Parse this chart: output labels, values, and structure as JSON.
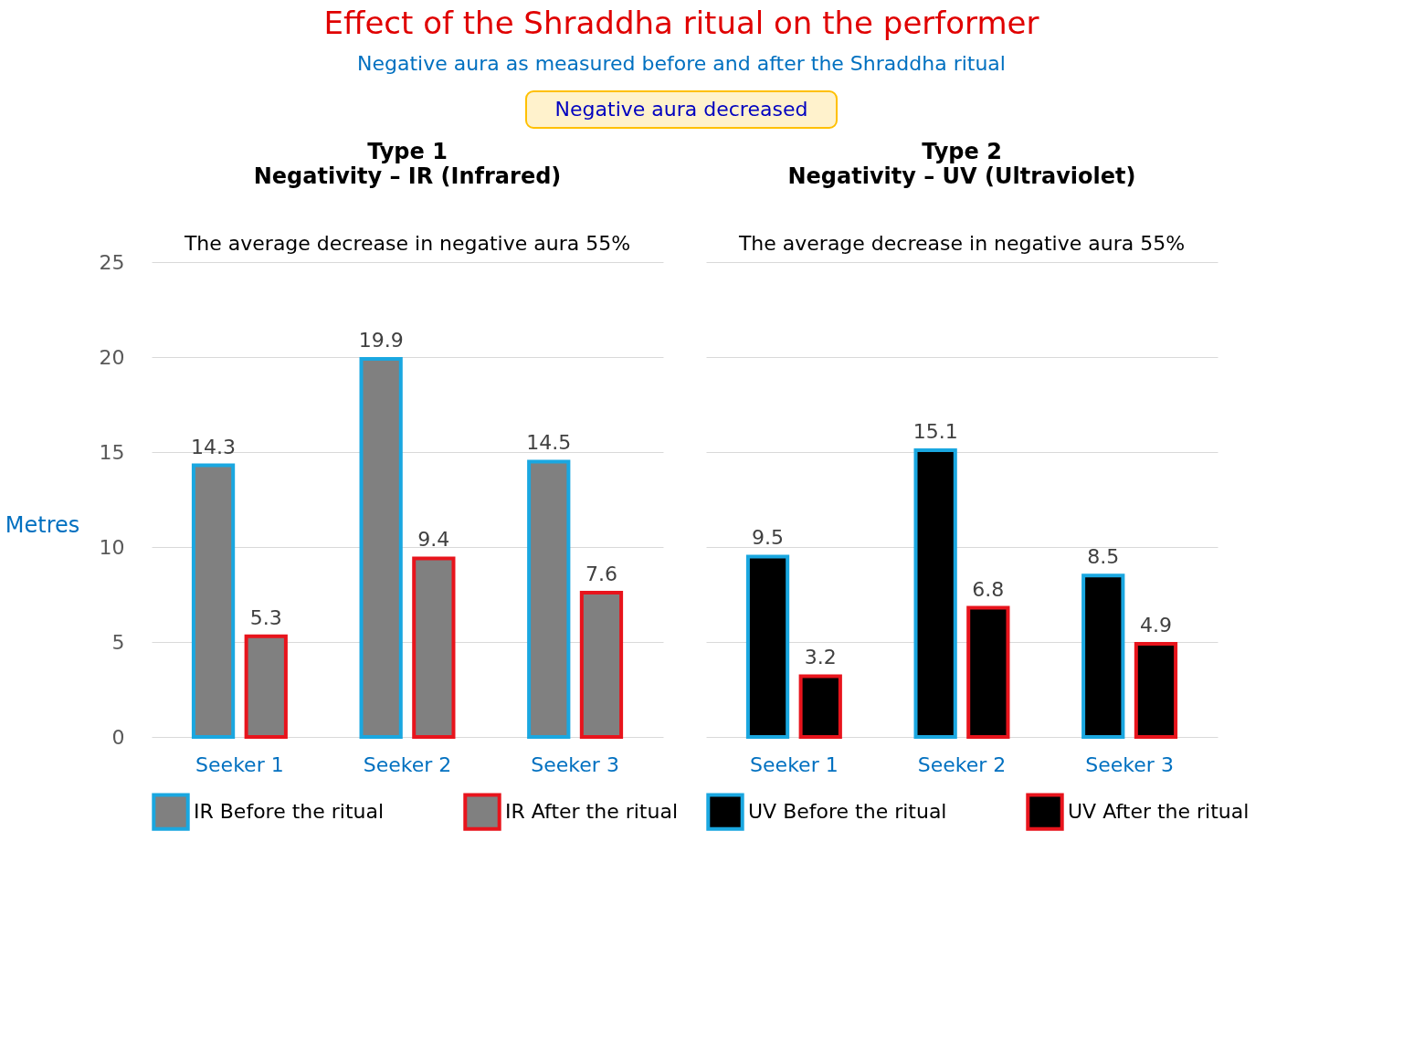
{
  "chart_data": [
    {
      "type": "other",
      "title": "Effect of the Shraddha ritual on the performer",
      "subtitle": "Negative aura as measured before and after the Shraddha ritual",
      "annotations": [
        "Negative aura decreased"
      ]
    },
    {
      "type": "bar",
      "title": "Type 1",
      "subtitle": "Negativity – IR (Infrared)",
      "ylabel": "Metres",
      "annotations": [
        "The average decrease in negative aura 55%"
      ],
      "categories": [
        "Seeker 1",
        "Seeker 2",
        "Seeker 3"
      ],
      "series": [
        {
          "name": "IR Before the ritual",
          "color": "#808080",
          "values": [
            14.3,
            19.9,
            14.5
          ]
        },
        {
          "name": "IR After the ritual",
          "color": "#808080",
          "values": [
            5.3,
            9.4,
            7.6
          ]
        }
      ],
      "ylim": [
        0,
        25
      ],
      "yticks": [
        0,
        5,
        10,
        15,
        20,
        25
      ],
      "grid": "y",
      "legend": "bottom",
      "data_labels": true
    },
    {
      "type": "bar",
      "title": "Type 2",
      "subtitle": "Negativity – UV (Ultraviolet)",
      "annotations": [
        "The average decrease in negative aura 55%"
      ],
      "categories": [
        "Seeker 1",
        "Seeker 2",
        "Seeker 3"
      ],
      "series": [
        {
          "name": "UV Before the ritual",
          "color": "#000000",
          "values": [
            9.5,
            15.1,
            8.5
          ]
        },
        {
          "name": "UV After the ritual",
          "color": "#000000",
          "values": [
            3.2,
            6.8,
            4.9
          ]
        }
      ],
      "ylim": [
        0,
        25
      ],
      "yticks": [
        0,
        5,
        10,
        15,
        20,
        25
      ],
      "grid": "y",
      "legend": "bottom",
      "data_labels": true,
      "tick_labels": "x"
    }
  ]
}
